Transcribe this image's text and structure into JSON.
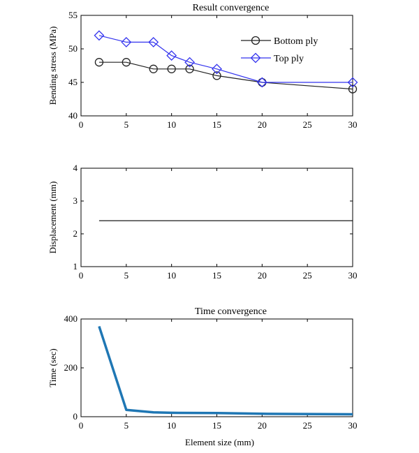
{
  "chart_data": [
    {
      "type": "line",
      "title": "Result convergence",
      "xlabel": "",
      "ylabel": "Bending stress (MPa)",
      "xlim": [
        0,
        30
      ],
      "ylim": [
        40,
        55
      ],
      "xticks": [
        0,
        5,
        10,
        15,
        20,
        25,
        30
      ],
      "yticks": [
        40,
        45,
        50,
        55
      ],
      "grid": false,
      "legend": "top-right",
      "series": [
        {
          "name": "Bottom ply",
          "color": "#222222",
          "marker": "circle",
          "x": [
            2,
            5,
            8,
            10,
            12,
            15,
            20,
            30
          ],
          "y": [
            48,
            48,
            47,
            47,
            47,
            46,
            45,
            44
          ]
        },
        {
          "name": "Top ply",
          "color": "#3333ee",
          "marker": "diamond",
          "x": [
            2,
            5,
            8,
            10,
            12,
            15,
            20,
            30
          ],
          "y": [
            52,
            51,
            51,
            49,
            48,
            47,
            45,
            45
          ]
        }
      ]
    },
    {
      "type": "line",
      "title": "",
      "xlabel": "",
      "ylabel": "Displacement (mm)",
      "xlim": [
        0,
        30
      ],
      "ylim": [
        1,
        4
      ],
      "xticks": [
        0,
        5,
        10,
        15,
        20,
        25,
        30
      ],
      "yticks": [
        1,
        2,
        3,
        4
      ],
      "grid": false,
      "series": [
        {
          "color": "#000000",
          "x": [
            2,
            30
          ],
          "y": [
            2.4,
            2.4
          ]
        }
      ]
    },
    {
      "type": "line",
      "title": "Time convergence",
      "xlabel": "Element size (mm)",
      "ylabel": "Time (sec)",
      "xlim": [
        0,
        30
      ],
      "ylim": [
        0,
        400
      ],
      "xticks": [
        0,
        5,
        10,
        15,
        20,
        25,
        30
      ],
      "yticks": [
        0,
        200,
        400
      ],
      "grid": false,
      "series": [
        {
          "color": "#1f77b4",
          "x": [
            2,
            5,
            8,
            10,
            15,
            20,
            30
          ],
          "y": [
            370,
            28,
            18,
            16,
            15,
            12,
            10
          ]
        }
      ]
    }
  ]
}
